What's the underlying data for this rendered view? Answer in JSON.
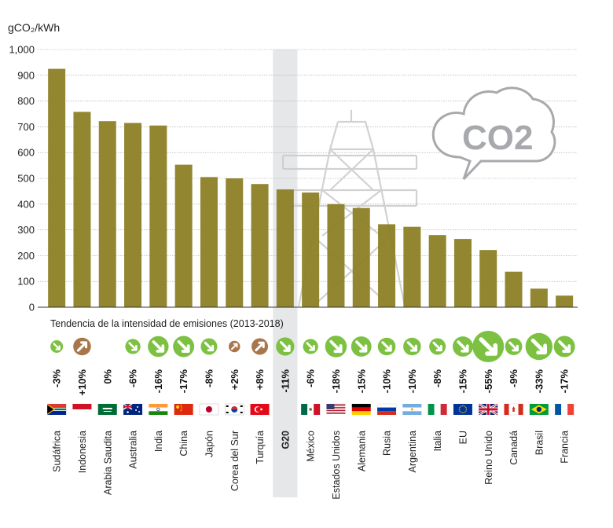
{
  "chart_data": {
    "type": "bar",
    "ylabel": "gCO₂/kWh",
    "ylim": [
      0,
      1000
    ],
    "yticks": [
      "0",
      "100",
      "200",
      "300",
      "400",
      "500",
      "600",
      "700",
      "800",
      "900",
      "1,000"
    ],
    "categories": [
      "Sudáfrica",
      "Indonesia",
      "Arabia Saudita",
      "Australia",
      "India",
      "China",
      "Japón",
      "Corea del Sur",
      "Turquía",
      "G20",
      "México",
      "Estados Unidos",
      "Alemania",
      "Rusia",
      "Argentina",
      "Italia",
      "EU",
      "Reino Unido",
      "Canadá",
      "Brasil",
      "Francia"
    ],
    "values": [
      925,
      758,
      722,
      715,
      705,
      553,
      505,
      500,
      478,
      457,
      445,
      400,
      385,
      322,
      312,
      280,
      265,
      222,
      138,
      72,
      45
    ],
    "highlight": "G20",
    "bar_color": "#8c8026",
    "trend_title": "Tendencia de la intensidad de emisiones (2013-2018)",
    "trend_labels": [
      "-3%",
      "+10%",
      "0%",
      "-6%",
      "-16%",
      "-17%",
      "-8%",
      "+2%",
      "+8%",
      "-11%",
      "-6%",
      "-18%",
      "-15%",
      "-10%",
      "-10%",
      "-8%",
      "-15%",
      "-55%",
      "-9%",
      "-33%",
      "-17%"
    ],
    "trend_values": [
      -3,
      10,
      0,
      -6,
      -16,
      -17,
      -8,
      2,
      8,
      -11,
      -6,
      -18,
      -15,
      -10,
      -10,
      -8,
      -15,
      -55,
      -9,
      -33,
      -17
    ],
    "trend_colors": {
      "down": "#7dc142",
      "up": "#a8764a"
    },
    "co2_label": "CO2"
  }
}
